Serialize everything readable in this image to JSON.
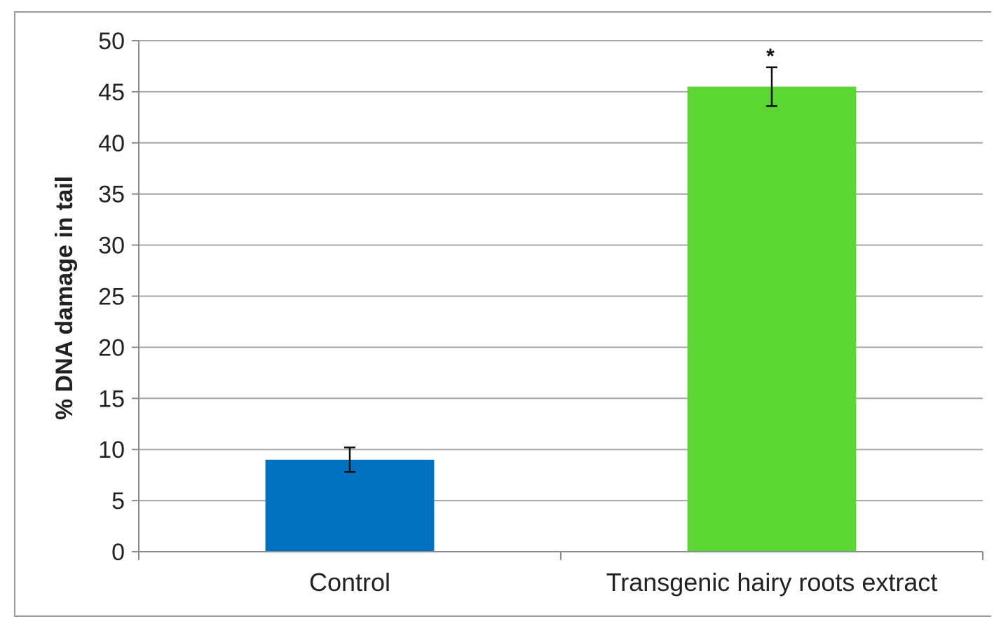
{
  "chart_data": {
    "type": "bar",
    "title": "",
    "xlabel": "",
    "ylabel": "% DNA damage in tail",
    "categories": [
      "Control",
      "Transgenic hairy roots extract"
    ],
    "values": [
      9.0,
      45.5
    ],
    "error": [
      1.2,
      1.9
    ],
    "significance": [
      "",
      "*"
    ],
    "colors": [
      "#0070c0",
      "#5cd633"
    ],
    "ylim": [
      0,
      50
    ],
    "yticks": [
      0,
      5,
      10,
      15,
      20,
      25,
      30,
      35,
      40,
      45,
      50
    ],
    "grid": true,
    "legend": "none"
  }
}
